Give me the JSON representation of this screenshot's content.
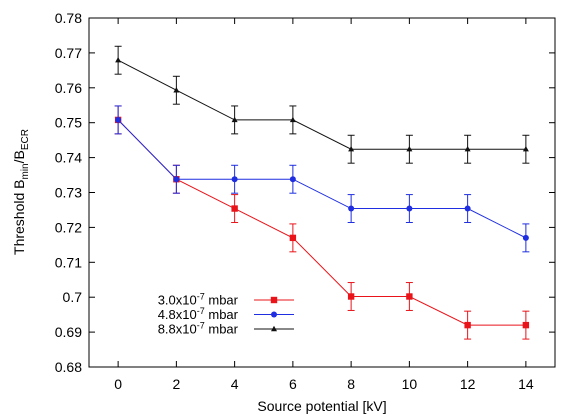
{
  "chart_data": {
    "type": "line",
    "title": "",
    "xlabel": "Source potential [kV]",
    "ylabel": {
      "prefix": "Threshold B",
      "sub1": "min",
      "mid": "/B",
      "sub2": "ECR"
    },
    "xlim": [
      -1,
      15
    ],
    "ylim": [
      0.68,
      0.78
    ],
    "x_ticks": [
      0,
      2,
      4,
      6,
      8,
      10,
      12,
      14
    ],
    "y_ticks": [
      0.68,
      0.69,
      0.7,
      0.71,
      0.72,
      0.73,
      0.74,
      0.75,
      0.76,
      0.77,
      0.78
    ],
    "y_tick_labels": [
      "0.68",
      "0.69",
      "0.7",
      "0.71",
      "0.72",
      "0.73",
      "0.74",
      "0.75",
      "0.76",
      "0.77",
      "0.78"
    ],
    "grid": false,
    "legend_position": "bottom-left",
    "series": [
      {
        "name": {
          "base": "3.0x10",
          "exp": "-7",
          "unit": " mbar"
        },
        "color": "#e8141a",
        "marker": "square",
        "x": [
          0,
          2,
          4,
          6,
          8,
          10,
          12,
          14
        ],
        "y": [
          0.7508,
          0.7338,
          0.7254,
          0.717,
          0.7002,
          0.7002,
          0.692,
          0.692
        ],
        "err": [
          0.004,
          0.004,
          0.004,
          0.004,
          0.004,
          0.004,
          0.004,
          0.004
        ]
      },
      {
        "name": {
          "base": "4.8x10",
          "exp": "-7",
          "unit": " mbar"
        },
        "color": "#1f2ee0",
        "marker": "circle",
        "x": [
          0,
          2,
          4,
          6,
          8,
          10,
          12,
          14
        ],
        "y": [
          0.7508,
          0.7338,
          0.7338,
          0.7338,
          0.7254,
          0.7254,
          0.7254,
          0.717
        ],
        "err": [
          0.004,
          0.004,
          0.004,
          0.004,
          0.004,
          0.004,
          0.004,
          0.004
        ]
      },
      {
        "name": {
          "base": "8.8x10",
          "exp": "-7",
          "unit": " mbar"
        },
        "color": "#111111",
        "marker": "triangle",
        "x": [
          0,
          2,
          4,
          6,
          8,
          10,
          12,
          14
        ],
        "y": [
          0.7679,
          0.7593,
          0.7508,
          0.7508,
          0.7424,
          0.7424,
          0.7424,
          0.7424
        ],
        "err": [
          0.004,
          0.004,
          0.004,
          0.004,
          0.004,
          0.004,
          0.004,
          0.004
        ]
      }
    ]
  }
}
